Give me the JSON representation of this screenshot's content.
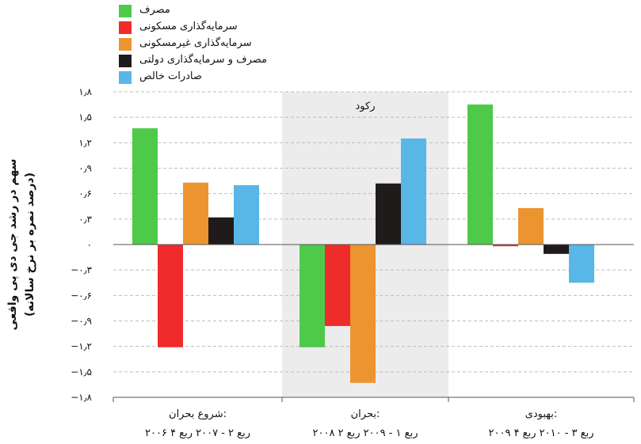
{
  "chart_data": {
    "type": "bar",
    "ylabel_line1": "سهم در رشد جی دی پی واقعی",
    "ylabel_line2": "(درصد نمره بر نرخ سالانه)",
    "ylim": [
      -1.8,
      1.8
    ],
    "yticks": [
      1.8,
      1.5,
      1.2,
      0.9,
      0.6,
      0.3,
      0,
      -0.3,
      -0.6,
      -0.9,
      -1.2,
      -1.5,
      -1.8
    ],
    "ytick_labels": [
      "۱٫۸",
      "۱٫۵",
      "۱٫۲",
      "۰٫۹",
      "۰٫۶",
      "۰٫۳",
      "۰",
      "−۰٫۳",
      "−۰٫۶",
      "−۰٫۹",
      "−۱٫۲",
      "−۱٫۵",
      "−۱٫۸"
    ],
    "grid": "horizontal dashed",
    "legend_position": "top-left",
    "shaded_region_label": "رکود",
    "categories": [
      {
        "line1": "شروع بحران:",
        "line2": "۲۰۰۶ ربع ۲ - ۲۰۰۷ ربع ۴"
      },
      {
        "line1": "بحران:",
        "line2": "۲۰۰۸ ربع ۱ - ۲۰۰۹ ربع ۲"
      },
      {
        "line1": "بهبودی:",
        "line2": "۲۰۰۹ ربع ۳ - ۲۰۱۰ ربع ۴"
      }
    ],
    "series": [
      {
        "name": "مصرف",
        "color": "#4ec94a",
        "values": [
          1.37,
          -1.21,
          1.65
        ]
      },
      {
        "name": "سرمایه‌گذاری مسکونی",
        "color": "#ef2b2b",
        "values": [
          -1.21,
          -0.96,
          -0.02
        ]
      },
      {
        "name": "سرمایه‌گذاری غیرمسکونی",
        "color": "#ec9530",
        "values": [
          0.73,
          -1.63,
          0.43
        ]
      },
      {
        "name": "مصرف و سرمایه‌گذاری دولتی",
        "color": "#1f1b1b",
        "values": [
          0.32,
          0.72,
          -0.11
        ]
      },
      {
        "name": "صادرات خالص",
        "color": "#58b7e6",
        "values": [
          0.7,
          1.25,
          -0.45
        ]
      }
    ]
  }
}
